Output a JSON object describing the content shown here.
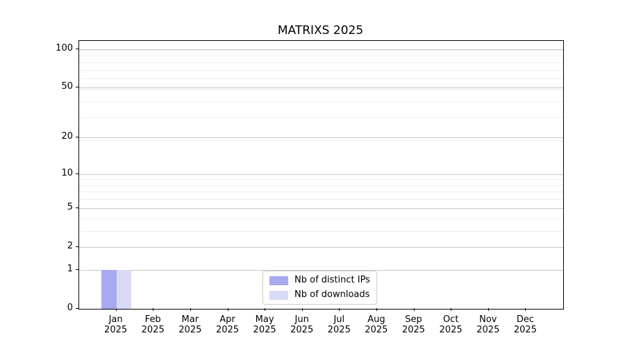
{
  "title": "MATRIXS 2025",
  "colors": {
    "distinct_ips": "#a9a9f0",
    "downloads": "#d9d9f8",
    "grid_major": "#c9c9c9",
    "grid_minor": "#ededed",
    "spine": "#000000",
    "background": "#ffffff"
  },
  "chart_data": {
    "type": "bar",
    "title": "MATRIXS 2025",
    "xlabels": [
      {
        "month": "Jan",
        "year": "2025"
      },
      {
        "month": "Feb",
        "year": "2025"
      },
      {
        "month": "Mar",
        "year": "2025"
      },
      {
        "month": "Apr",
        "year": "2025"
      },
      {
        "month": "May",
        "year": "2025"
      },
      {
        "month": "Jun",
        "year": "2025"
      },
      {
        "month": "Jul",
        "year": "2025"
      },
      {
        "month": "Aug",
        "year": "2025"
      },
      {
        "month": "Sep",
        "year": "2025"
      },
      {
        "month": "Oct",
        "year": "2025"
      },
      {
        "month": "Nov",
        "year": "2025"
      },
      {
        "month": "Dec",
        "year": "2025"
      }
    ],
    "series": [
      {
        "key": "distinct-ips",
        "name": "Nb of distinct IPs",
        "color": "#a9a9f0",
        "values": [
          1,
          0,
          0,
          0,
          0,
          0,
          0,
          0,
          0,
          0,
          0,
          0
        ]
      },
      {
        "key": "downloads",
        "name": "Nb of downloads",
        "color": "#d9d9f8",
        "values": [
          1,
          0,
          0,
          0,
          0,
          0,
          0,
          0,
          0,
          0,
          0,
          0
        ]
      }
    ],
    "yscale": "log1p",
    "ylim": [
      0,
      116
    ],
    "yticks": [
      0,
      1,
      2,
      5,
      10,
      20,
      50,
      100
    ],
    "ytick_labels": [
      "0",
      "1",
      "2",
      "5",
      "10",
      "20",
      "50",
      "100"
    ],
    "yticks_minor": [
      3,
      4,
      6,
      7,
      8,
      9,
      19,
      29,
      39,
      49,
      59,
      69,
      79,
      89,
      99
    ],
    "grid": true,
    "legend_position": "bottom-center"
  }
}
